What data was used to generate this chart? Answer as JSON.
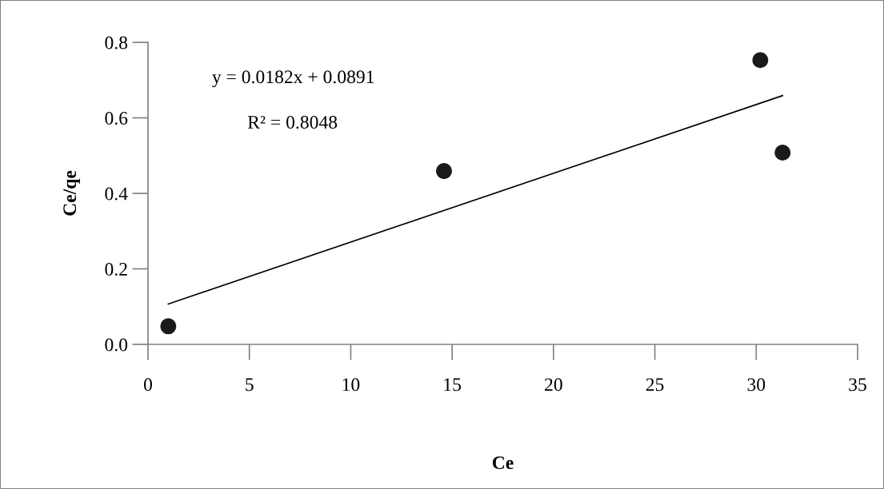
{
  "chart_data": {
    "type": "scatter",
    "xlabel": "Ce",
    "ylabel": "Ce/qe",
    "x": [
      1.0,
      14.6,
      30.2,
      31.3
    ],
    "series": [
      {
        "color": "#1a1a1a",
        "values": [
          0.048,
          0.459,
          0.753,
          0.508
        ],
        "marker": "circle"
      },
      {
        "type": "line",
        "color": "#000000",
        "x": [
          1.0,
          31.3
        ],
        "values": [
          0.107,
          0.659
        ],
        "marker": "none",
        "line_style": "solid"
      }
    ],
    "annotations": [
      "y = 0.0182x + 0.0891",
      "R² = 0.8048"
    ],
    "xlim": [
      0,
      35
    ],
    "xticks": [
      0,
      5,
      10,
      15,
      20,
      25,
      30,
      35
    ],
    "ylim": [
      0,
      0.8
    ],
    "yticks": [
      {
        "value": 0,
        "label": "0.0"
      },
      {
        "value": 0.2,
        "label": "0.2"
      },
      {
        "value": 0.4,
        "label": "0.4"
      },
      {
        "value": 0.6,
        "label": "0.6"
      },
      {
        "value": 0.8,
        "label": "0.8"
      }
    ],
    "grid": false,
    "legend": false
  }
}
